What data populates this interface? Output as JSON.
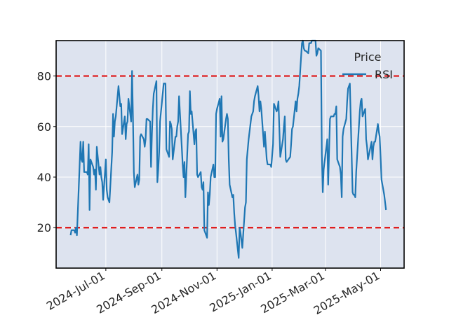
{
  "chart_data": {
    "type": "line",
    "title": "",
    "xlabel": "",
    "ylabel": "",
    "xlim": [
      "2024-05-07",
      "2025-05-27"
    ],
    "ylim": [
      4,
      94
    ],
    "x_ticks": [
      {
        "date": "2024-07-01",
        "label": "2024-Jul-01"
      },
      {
        "date": "2024-09-01",
        "label": "2024-Sep-01"
      },
      {
        "date": "2024-11-01",
        "label": "2024-Nov-01"
      },
      {
        "date": "2025-01-01",
        "label": "2025-Jan-01"
      },
      {
        "date": "2025-03-01",
        "label": "2025-Mar-01"
      },
      {
        "date": "2025-05-01",
        "label": "2025-May-01"
      }
    ],
    "y_ticks": [
      20,
      40,
      60,
      80
    ],
    "grid": true,
    "background": "#dde3ef",
    "legend": {
      "title": "Price",
      "position": "top-right"
    },
    "reference_lines": [
      {
        "y": 80,
        "color": "#e01010",
        "style": "dashed"
      },
      {
        "y": 20,
        "color": "#e01010",
        "style": "dashed"
      }
    ],
    "series": [
      {
        "name": "RSI",
        "color": "#1f77b4",
        "points": [
          [
            "2024-05-23",
            17
          ],
          [
            "2024-05-24",
            19
          ],
          [
            "2024-05-27",
            19
          ],
          [
            "2024-05-28",
            18
          ],
          [
            "2024-05-29",
            20
          ],
          [
            "2024-05-30",
            17
          ],
          [
            "2024-06-03",
            54
          ],
          [
            "2024-06-04",
            47
          ],
          [
            "2024-06-05",
            46
          ],
          [
            "2024-06-06",
            54
          ],
          [
            "2024-06-07",
            42
          ],
          [
            "2024-06-10",
            42
          ],
          [
            "2024-06-11",
            41
          ],
          [
            "2024-06-12",
            53
          ],
          [
            "2024-06-13",
            27
          ],
          [
            "2024-06-14",
            47
          ],
          [
            "2024-06-17",
            44
          ],
          [
            "2024-06-18",
            41
          ],
          [
            "2024-06-19",
            43
          ],
          [
            "2024-06-20",
            35
          ],
          [
            "2024-06-21",
            52
          ],
          [
            "2024-06-24",
            41
          ],
          [
            "2024-06-25",
            44
          ],
          [
            "2024-06-26",
            40
          ],
          [
            "2024-06-27",
            38
          ],
          [
            "2024-06-28",
            31
          ],
          [
            "2024-07-01",
            47
          ],
          [
            "2024-07-02",
            35
          ],
          [
            "2024-07-03",
            32
          ],
          [
            "2024-07-05",
            30
          ],
          [
            "2024-07-08",
            50
          ],
          [
            "2024-07-09",
            65
          ],
          [
            "2024-07-10",
            56
          ],
          [
            "2024-07-11",
            62
          ],
          [
            "2024-07-12",
            64
          ],
          [
            "2024-07-15",
            76
          ],
          [
            "2024-07-16",
            72
          ],
          [
            "2024-07-17",
            68
          ],
          [
            "2024-07-18",
            69
          ],
          [
            "2024-07-19",
            57
          ],
          [
            "2024-07-22",
            64
          ],
          [
            "2024-07-23",
            55
          ],
          [
            "2024-07-24",
            61
          ],
          [
            "2024-07-25",
            62
          ],
          [
            "2024-07-26",
            71
          ],
          [
            "2024-07-29",
            62
          ],
          [
            "2024-07-30",
            82
          ],
          [
            "2024-07-31",
            64
          ],
          [
            "2024-08-01",
            42
          ],
          [
            "2024-08-02",
            36
          ],
          [
            "2024-08-05",
            41
          ],
          [
            "2024-08-06",
            37
          ],
          [
            "2024-08-07",
            39
          ],
          [
            "2024-08-08",
            56
          ],
          [
            "2024-08-09",
            57
          ],
          [
            "2024-08-12",
            55
          ],
          [
            "2024-08-13",
            52
          ],
          [
            "2024-08-14",
            55
          ],
          [
            "2024-08-15",
            63
          ],
          [
            "2024-08-16",
            63
          ],
          [
            "2024-08-19",
            62
          ],
          [
            "2024-08-20",
            44
          ],
          [
            "2024-08-21",
            57
          ],
          [
            "2024-08-22",
            67
          ],
          [
            "2024-08-23",
            73
          ],
          [
            "2024-08-26",
            78
          ],
          [
            "2024-08-27",
            38
          ],
          [
            "2024-08-28",
            43
          ],
          [
            "2024-08-29",
            50
          ],
          [
            "2024-08-30",
            62
          ],
          [
            "2024-09-03",
            77
          ],
          [
            "2024-09-04",
            77
          ],
          [
            "2024-09-05",
            77
          ],
          [
            "2024-09-06",
            51
          ],
          [
            "2024-09-09",
            48
          ],
          [
            "2024-09-10",
            62
          ],
          [
            "2024-09-11",
            61
          ],
          [
            "2024-09-12",
            59
          ],
          [
            "2024-09-13",
            47
          ],
          [
            "2024-09-16",
            56
          ],
          [
            "2024-09-17",
            56
          ],
          [
            "2024-09-18",
            60
          ],
          [
            "2024-09-19",
            62
          ],
          [
            "2024-09-20",
            72
          ],
          [
            "2024-09-23",
            52
          ],
          [
            "2024-09-24",
            45
          ],
          [
            "2024-09-25",
            40
          ],
          [
            "2024-09-26",
            46
          ],
          [
            "2024-09-27",
            32
          ],
          [
            "2024-09-30",
            57
          ],
          [
            "2024-10-01",
            58
          ],
          [
            "2024-10-02",
            74
          ],
          [
            "2024-10-03",
            65
          ],
          [
            "2024-10-04",
            66
          ],
          [
            "2024-10-07",
            53
          ],
          [
            "2024-10-08",
            58
          ],
          [
            "2024-10-09",
            59
          ],
          [
            "2024-10-10",
            41
          ],
          [
            "2024-10-11",
            40
          ],
          [
            "2024-10-14",
            42
          ],
          [
            "2024-10-15",
            36
          ],
          [
            "2024-10-16",
            35
          ],
          [
            "2024-10-17",
            38
          ],
          [
            "2024-10-18",
            19
          ],
          [
            "2024-10-21",
            16
          ],
          [
            "2024-10-22",
            34
          ],
          [
            "2024-10-23",
            29
          ],
          [
            "2024-10-24",
            33
          ],
          [
            "2024-10-25",
            40
          ],
          [
            "2024-10-28",
            45
          ],
          [
            "2024-10-29",
            40
          ],
          [
            "2024-10-30",
            40
          ],
          [
            "2024-10-31",
            65
          ],
          [
            "2024-11-01",
            67
          ],
          [
            "2024-11-04",
            71
          ],
          [
            "2024-11-05",
            56
          ],
          [
            "2024-11-06",
            72
          ],
          [
            "2024-11-07",
            54
          ],
          [
            "2024-11-08",
            55
          ],
          [
            "2024-11-11",
            63
          ],
          [
            "2024-11-12",
            65
          ],
          [
            "2024-11-13",
            63
          ],
          [
            "2024-11-14",
            47
          ],
          [
            "2024-11-15",
            37
          ],
          [
            "2024-11-18",
            32
          ],
          [
            "2024-11-19",
            33
          ],
          [
            "2024-11-20",
            26
          ],
          [
            "2024-11-21",
            21
          ],
          [
            "2024-11-22",
            18
          ],
          [
            "2024-11-25",
            8
          ],
          [
            "2024-11-26",
            20
          ],
          [
            "2024-11-27",
            18
          ],
          [
            "2024-11-29",
            12
          ],
          [
            "2024-12-02",
            28
          ],
          [
            "2024-12-03",
            30
          ],
          [
            "2024-12-04",
            47
          ],
          [
            "2024-12-05",
            51
          ],
          [
            "2024-12-06",
            55
          ],
          [
            "2024-12-09",
            64
          ],
          [
            "2024-12-10",
            65
          ],
          [
            "2024-12-11",
            66
          ],
          [
            "2024-12-12",
            70
          ],
          [
            "2024-12-13",
            72
          ],
          [
            "2024-12-16",
            76
          ],
          [
            "2024-12-17",
            72
          ],
          [
            "2024-12-18",
            66
          ],
          [
            "2024-12-19",
            70
          ],
          [
            "2024-12-20",
            67
          ],
          [
            "2024-12-23",
            52
          ],
          [
            "2024-12-24",
            58
          ],
          [
            "2024-12-26",
            47
          ],
          [
            "2024-12-27",
            45
          ],
          [
            "2024-12-30",
            45
          ],
          [
            "2024-12-31",
            44
          ],
          [
            "2025-01-02",
            53
          ],
          [
            "2025-01-03",
            69
          ],
          [
            "2025-01-06",
            66
          ],
          [
            "2025-01-07",
            67
          ],
          [
            "2025-01-08",
            70
          ],
          [
            "2025-01-10",
            48
          ],
          [
            "2025-01-13",
            55
          ],
          [
            "2025-01-14",
            60
          ],
          [
            "2025-01-15",
            64
          ],
          [
            "2025-01-16",
            47
          ],
          [
            "2025-01-17",
            46
          ],
          [
            "2025-01-21",
            48
          ],
          [
            "2025-01-22",
            53
          ],
          [
            "2025-01-23",
            59
          ],
          [
            "2025-01-24",
            60
          ],
          [
            "2025-01-27",
            70
          ],
          [
            "2025-01-28",
            66
          ],
          [
            "2025-01-29",
            71
          ],
          [
            "2025-01-30",
            73
          ],
          [
            "2025-01-31",
            76
          ],
          [
            "2025-02-03",
            93
          ],
          [
            "2025-02-04",
            94
          ],
          [
            "2025-02-05",
            91
          ],
          [
            "2025-02-06",
            90
          ],
          [
            "2025-02-07",
            90
          ],
          [
            "2025-02-10",
            89
          ],
          [
            "2025-02-11",
            93
          ],
          [
            "2025-02-12",
            93
          ],
          [
            "2025-02-13",
            93
          ],
          [
            "2025-02-14",
            94
          ],
          [
            "2025-02-18",
            94
          ],
          [
            "2025-02-19",
            88
          ],
          [
            "2025-02-20",
            89
          ],
          [
            "2025-02-21",
            91
          ],
          [
            "2025-02-24",
            90
          ],
          [
            "2025-02-25",
            49
          ],
          [
            "2025-02-26",
            34
          ],
          [
            "2025-02-27",
            43
          ],
          [
            "2025-02-28",
            46
          ],
          [
            "2025-03-03",
            55
          ],
          [
            "2025-03-04",
            37
          ],
          [
            "2025-03-05",
            50
          ],
          [
            "2025-03-06",
            63
          ],
          [
            "2025-03-07",
            64
          ],
          [
            "2025-03-10",
            64
          ],
          [
            "2025-03-11",
            65
          ],
          [
            "2025-03-12",
            65
          ],
          [
            "2025-03-13",
            68
          ],
          [
            "2025-03-14",
            47
          ],
          [
            "2025-03-17",
            44
          ],
          [
            "2025-03-18",
            41
          ],
          [
            "2025-03-19",
            32
          ],
          [
            "2025-03-20",
            56
          ],
          [
            "2025-03-21",
            59
          ],
          [
            "2025-03-24",
            63
          ],
          [
            "2025-03-25",
            70
          ],
          [
            "2025-03-26",
            75
          ],
          [
            "2025-03-27",
            76
          ],
          [
            "2025-03-28",
            77
          ],
          [
            "2025-03-31",
            34
          ],
          [
            "2025-04-01",
            33
          ],
          [
            "2025-04-02",
            33
          ],
          [
            "2025-04-03",
            32
          ],
          [
            "2025-04-04",
            42
          ],
          [
            "2025-04-07",
            60
          ],
          [
            "2025-04-08",
            66
          ],
          [
            "2025-04-09",
            70
          ],
          [
            "2025-04-10",
            71
          ],
          [
            "2025-04-11",
            64
          ],
          [
            "2025-04-14",
            67
          ],
          [
            "2025-04-15",
            55
          ],
          [
            "2025-04-16",
            52
          ],
          [
            "2025-04-17",
            47
          ],
          [
            "2025-04-21",
            54
          ],
          [
            "2025-04-22",
            47
          ],
          [
            "2025-04-23",
            52
          ],
          [
            "2025-04-24",
            54
          ],
          [
            "2025-04-25",
            54
          ],
          [
            "2025-04-28",
            61
          ],
          [
            "2025-04-29",
            58
          ],
          [
            "2025-04-30",
            56
          ],
          [
            "2025-05-01",
            48
          ],
          [
            "2025-05-02",
            39
          ],
          [
            "2025-05-05",
            33
          ],
          [
            "2025-05-06",
            30
          ],
          [
            "2025-05-07",
            27
          ]
        ]
      }
    ]
  }
}
